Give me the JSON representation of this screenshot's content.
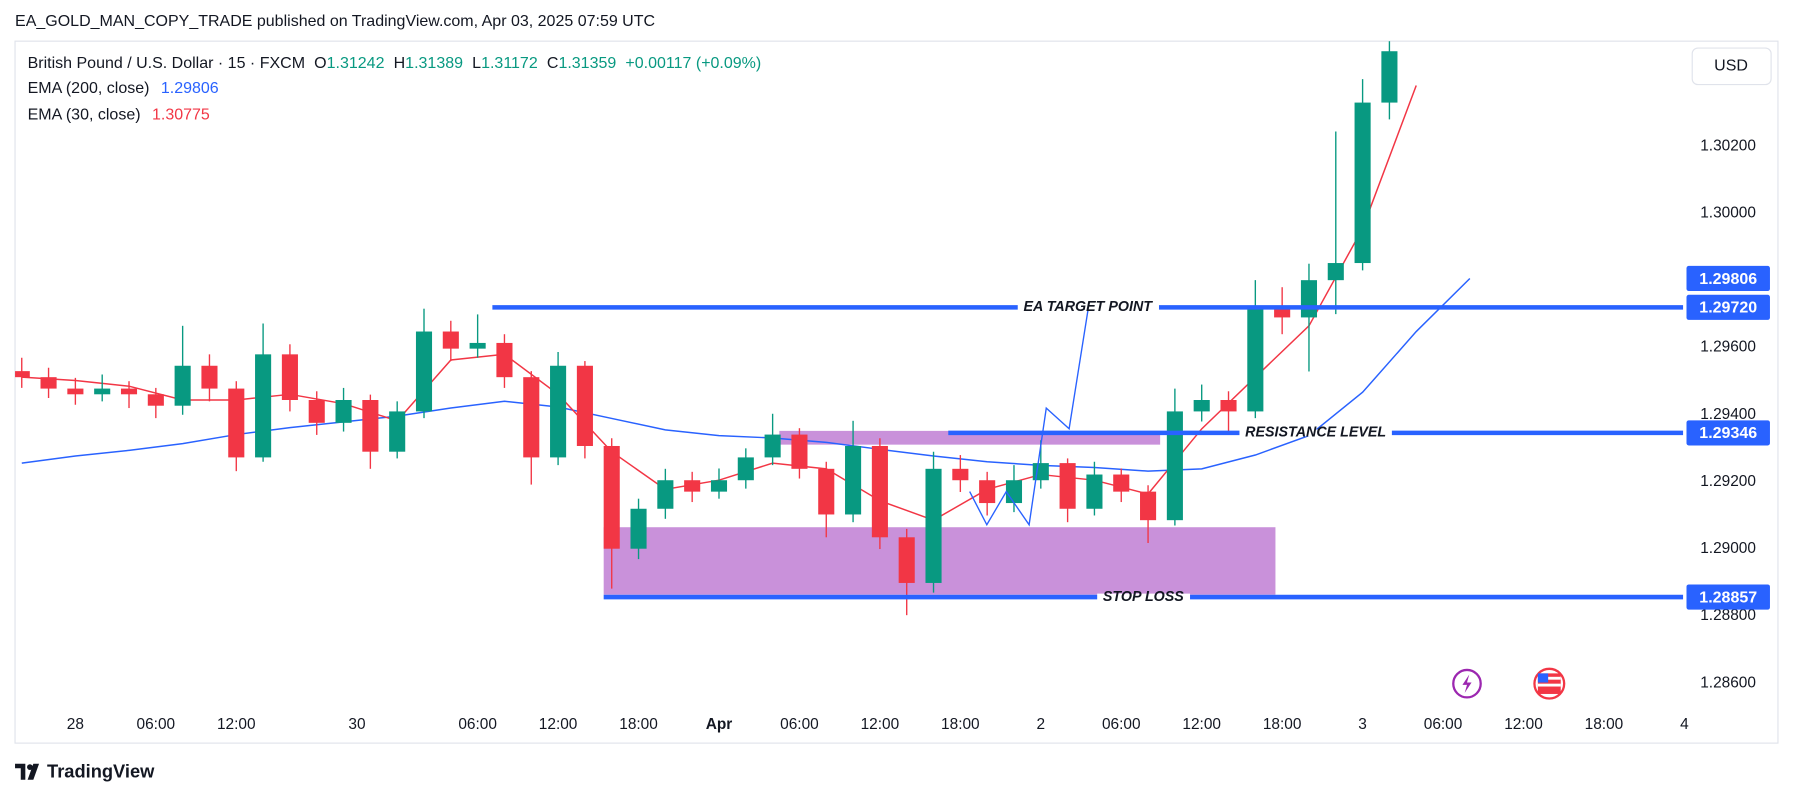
{
  "header": {
    "publisher_line": "EA_GOLD_MAN_COPY_TRADE published on TradingView.com, Apr 03, 2025 07:59 UTC",
    "symbol": "British Pound / U.S. Dollar · 15 · FXCM",
    "ohlc": [
      {
        "key": "O",
        "value": "1.31242"
      },
      {
        "key": "H",
        "value": "1.31389"
      },
      {
        "key": "L",
        "value": "1.31172"
      },
      {
        "key": "C",
        "value": "1.31359"
      }
    ],
    "change": "+0.00117 (+0.09%)",
    "currency": "USD",
    "brand": "TradingView"
  },
  "chart_data": {
    "type": "candlestick",
    "up_color": "#089981",
    "down_color": "#f23645",
    "x": [
      -4,
      -2,
      0,
      2,
      4,
      6,
      8,
      10,
      12,
      14,
      16,
      18,
      20,
      22,
      24,
      26,
      28,
      30,
      32,
      34,
      36,
      38,
      40,
      42,
      44,
      46,
      48,
      50,
      52,
      54,
      56,
      58,
      60,
      62,
      64,
      66,
      68,
      70,
      72,
      74,
      76,
      78,
      80,
      82,
      84,
      86,
      88,
      90,
      92,
      94,
      96,
      98
    ],
    "open": [
      1.2953,
      1.29512,
      1.29478,
      1.29461,
      1.29478,
      1.29461,
      1.29427,
      1.29546,
      1.29478,
      1.29273,
      1.2958,
      1.29444,
      1.29376,
      1.29444,
      1.2929,
      1.2941,
      1.29648,
      1.29597,
      1.29614,
      1.29512,
      1.29273,
      1.29546,
      1.29307,
      1.29001,
      1.2912,
      1.29205,
      1.29171,
      1.29205,
      1.29273,
      1.29341,
      1.29239,
      1.29103,
      1.29307,
      1.29035,
      1.28899,
      1.29239,
      1.29205,
      1.29137,
      1.29205,
      1.29256,
      1.2912,
      1.29222,
      1.29171,
      1.29086,
      1.2941,
      1.29444,
      1.2941,
      1.29716,
      1.2969,
      1.29801,
      1.29852,
      1.3033
    ],
    "high": [
      1.2957,
      1.2954,
      1.2951,
      1.2952,
      1.295,
      1.2948,
      1.29665,
      1.2958,
      1.295,
      1.29672,
      1.2961,
      1.2947,
      1.2948,
      1.2946,
      1.2944,
      1.29716,
      1.2968,
      1.29699,
      1.2964,
      1.2953,
      1.29587,
      1.2956,
      1.2933,
      1.2915,
      1.29239,
      1.2923,
      1.2924,
      1.293,
      1.29403,
      1.2936,
      1.2926,
      1.29382,
      1.2933,
      1.2906,
      1.2929,
      1.2928,
      1.2923,
      1.2925,
      1.29324,
      1.2927,
      1.2926,
      1.2924,
      1.2919,
      1.29478,
      1.2949,
      1.2947,
      1.29801,
      1.2978,
      1.2985,
      1.30244,
      1.304,
      1.30513
    ],
    "low": [
      1.2948,
      1.2945,
      1.2943,
      1.2944,
      1.2942,
      1.2939,
      1.294,
      1.2944,
      1.29232,
      1.2926,
      1.2941,
      1.2934,
      1.2935,
      1.29239,
      1.2927,
      1.2939,
      1.2956,
      1.2957,
      1.2948,
      1.29192,
      1.2925,
      1.2927,
      1.28882,
      1.2897,
      1.2909,
      1.2914,
      1.2915,
      1.2918,
      1.2925,
      1.2921,
      1.29035,
      1.2908,
      1.29,
      1.28803,
      1.2887,
      1.2917,
      1.291,
      1.2911,
      1.2918,
      1.2908,
      1.291,
      1.2914,
      1.29018,
      1.2907,
      1.2938,
      1.2934,
      1.2939,
      1.2964,
      1.29529,
      1.297,
      1.2983,
      1.3028
    ],
    "close": [
      1.29512,
      1.29478,
      1.29461,
      1.29478,
      1.29461,
      1.29427,
      1.29546,
      1.29478,
      1.29273,
      1.2958,
      1.29444,
      1.29376,
      1.29444,
      1.2929,
      1.2941,
      1.29648,
      1.29597,
      1.29614,
      1.29512,
      1.29273,
      1.29546,
      1.29307,
      1.29001,
      1.2912,
      1.29205,
      1.29171,
      1.29205,
      1.29273,
      1.29341,
      1.29239,
      1.29103,
      1.29307,
      1.29035,
      1.28899,
      1.29239,
      1.29205,
      1.29137,
      1.29205,
      1.29256,
      1.2912,
      1.29222,
      1.29171,
      1.29086,
      1.2941,
      1.29444,
      1.2941,
      1.29716,
      1.2969,
      1.29801,
      1.29852,
      1.3033,
      1.30483
    ],
    "series": [
      {
        "name": "EMA (200, close)",
        "legend_value": "1.29806",
        "color": "#2962ff",
        "x": [
          -4,
          0,
          4,
          8,
          12,
          16,
          20,
          24,
          28,
          32,
          36,
          40,
          44,
          48,
          52,
          56,
          60,
          64,
          68,
          72,
          76,
          80,
          84,
          88,
          92,
          96,
          100,
          104
        ],
        "values": [
          1.29256,
          1.29277,
          1.29294,
          1.29314,
          1.29341,
          1.29362,
          1.29379,
          1.29396,
          1.2942,
          1.2944,
          1.29423,
          1.29389,
          1.29355,
          1.29338,
          1.29331,
          1.29318,
          1.29297,
          1.29277,
          1.2926,
          1.29249,
          1.29243,
          1.29232,
          1.29239,
          1.2928,
          1.29338,
          1.29467,
          1.29648,
          1.29806
        ]
      },
      {
        "name": "EMA (30, close)",
        "legend_value": "1.30775",
        "color": "#f23645",
        "x": [
          -4,
          0,
          4,
          8,
          12,
          16,
          20,
          24,
          28,
          32,
          36,
          40,
          44,
          48,
          52,
          56,
          60,
          64,
          68,
          72,
          76,
          80,
          84,
          88,
          92,
          96,
          100
        ],
        "values": [
          1.29512,
          1.29502,
          1.29485,
          1.29444,
          1.29444,
          1.29461,
          1.29433,
          1.29382,
          1.29563,
          1.2958,
          1.29461,
          1.2929,
          1.29178,
          1.29205,
          1.29256,
          1.29239,
          1.29144,
          1.29086,
          1.29178,
          1.29222,
          1.29205,
          1.29164,
          1.29358,
          1.29512,
          1.29665,
          1.29955,
          1.30381
        ]
      }
    ],
    "levels": [
      {
        "label": "EA TARGET POINT",
        "value": 1.2972,
        "value_label": "1.29720",
        "x_start": 31.1
      },
      {
        "label": "RESISTANCE LEVEL",
        "value": 1.29346,
        "value_label": "1.29346",
        "x_start": 65.1
      },
      {
        "label": "STOP LOSS",
        "value": 1.28857,
        "value_label": "1.28857",
        "x_start": 39.4
      }
    ],
    "level_color": "#2962ff",
    "zones": [
      {
        "x": [
          52.5,
          80.9
        ],
        "y": [
          1.29311,
          1.29352
        ]
      },
      {
        "x": [
          39.4,
          89.5
        ],
        "y": [
          1.28864,
          1.29065
        ]
      }
    ],
    "zone_color": "#c68bd8",
    "xlim": [
      -4.5,
      119.9
    ],
    "xticks": [
      {
        "value": 0,
        "label": "28"
      },
      {
        "value": 6,
        "label": "06:00"
      },
      {
        "value": 12,
        "label": "12:00"
      },
      {
        "value": 21,
        "label": "30"
      },
      {
        "value": 30,
        "label": "06:00"
      },
      {
        "value": 36,
        "label": "12:00"
      },
      {
        "value": 42,
        "label": "18:00"
      },
      {
        "value": 48,
        "label": "Apr"
      },
      {
        "value": 54,
        "label": "06:00"
      },
      {
        "value": 60,
        "label": "12:00"
      },
      {
        "value": 66,
        "label": "18:00"
      },
      {
        "value": 72,
        "label": "2"
      },
      {
        "value": 78,
        "label": "06:00"
      },
      {
        "value": 84,
        "label": "12:00"
      },
      {
        "value": 90,
        "label": "18:00"
      },
      {
        "value": 96,
        "label": "3"
      },
      {
        "value": 102,
        "label": "06:00"
      },
      {
        "value": 108,
        "label": "12:00"
      },
      {
        "value": 114,
        "label": "18:00"
      },
      {
        "value": 120,
        "label": "4"
      }
    ],
    "ylim": [
      1.28524,
      1.30513
    ],
    "yticks": [
      {
        "value": 1.286,
        "label": "1.28600"
      },
      {
        "value": 1.288,
        "label": "1.28800"
      },
      {
        "value": 1.29,
        "label": "1.29000"
      },
      {
        "value": 1.292,
        "label": "1.29200"
      },
      {
        "value": 1.294,
        "label": "1.29400"
      },
      {
        "value": 1.296,
        "label": "1.29600"
      },
      {
        "value": 1.3,
        "label": "1.30000"
      },
      {
        "value": 1.302,
        "label": "1.30200"
      }
    ],
    "grid": false
  }
}
